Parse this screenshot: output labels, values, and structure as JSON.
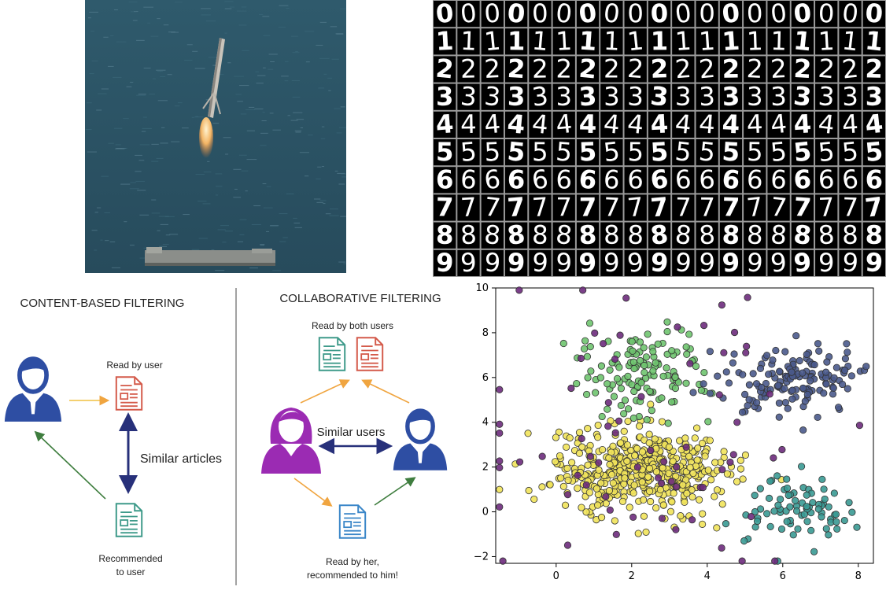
{
  "photo": {
    "subject": "rocket booster landing on drone ship at sea",
    "sea_color": "#2e5668",
    "flame_color": "#f2c27a"
  },
  "mnist": {
    "digits": [
      "0",
      "1",
      "2",
      "3",
      "4",
      "5",
      "6",
      "7",
      "8",
      "9"
    ],
    "samples_per_row": 19,
    "cell_color": "#000000",
    "stroke_color": "#ffffff"
  },
  "diagram": {
    "content_title": "CONTENT-BASED FILTERING",
    "collab_title": "COLLABORATIVE FILTERING",
    "read_by_user": "Read by user",
    "similar_articles": "Similar articles",
    "recommended_1": "Recommended",
    "recommended_2": "to user",
    "read_by_both": "Read by both users",
    "similar_users": "Similar users",
    "read_by_her_1": "Read by her,",
    "read_by_her_2": "recommended to him!",
    "colors": {
      "user_blue": "#2e4ea3",
      "user_purple": "#9b2bb3",
      "article_red": "#d45a4a",
      "article_teal": "#3e9a8a",
      "article_blue": "#3a86c8",
      "arrow_orange": "#f0a540",
      "arrow_green": "#3e7d3e",
      "arrow_navy": "#27307a"
    }
  },
  "chart_data": {
    "type": "scatter",
    "xlim": [
      -1.6,
      8.4
    ],
    "ylim": [
      -2.3,
      10.0
    ],
    "x_ticks": [
      0,
      2,
      4,
      6,
      8
    ],
    "y_ticks": [
      -2,
      0,
      2,
      4,
      6,
      8,
      10
    ],
    "grid": false,
    "clusters": [
      {
        "color": "#f1e35a",
        "center": [
          2.2,
          1.8
        ],
        "spread": [
          1.15,
          0.95
        ],
        "count": 470
      },
      {
        "color": "#6fc46f",
        "center": [
          2.2,
          6.2
        ],
        "spread": [
          0.9,
          1.0
        ],
        "count": 130
      },
      {
        "color": "#4a5a8c",
        "center": [
          6.3,
          5.9
        ],
        "spread": [
          0.85,
          0.75
        ],
        "count": 150
      },
      {
        "color": "#3a9a94",
        "center": [
          6.4,
          0.2
        ],
        "spread": [
          0.65,
          0.7
        ],
        "count": 80
      },
      {
        "color": "#6d2b7c",
        "center": [
          2.2,
          3.2
        ],
        "spread": [
          2.6,
          3.2
        ],
        "count": 70
      }
    ]
  }
}
